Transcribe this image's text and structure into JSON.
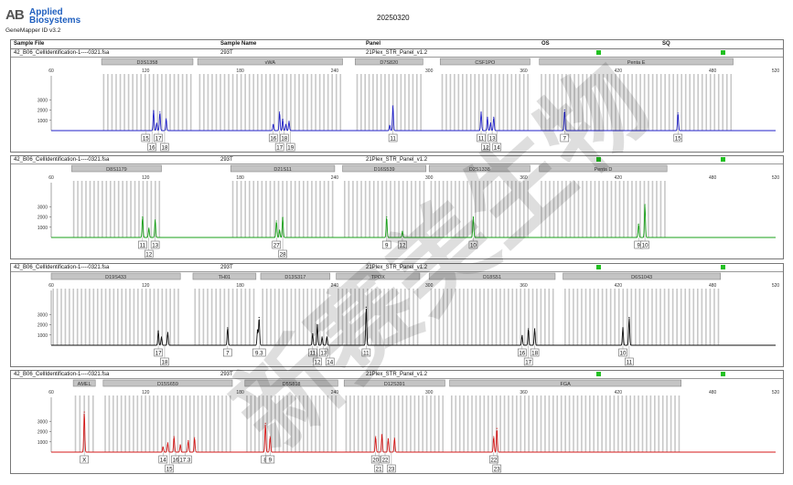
{
  "header": {
    "logo_mark": "AB",
    "brand_line1": "Applied",
    "brand_line2": "Biosystems",
    "software": "GeneMapper ID v3.2",
    "date": "20250320",
    "watermark": "新赛美生物"
  },
  "columns": {
    "sample_file": "Sample File",
    "sample_name": "Sample Name",
    "panel": "Panel",
    "os": "OS",
    "sq": "SQ"
  },
  "chart_data": [
    {
      "type": "line",
      "sample_file": "42_B06_CellIdentification-1----0321.fsa",
      "sample_name": "293T",
      "panel": "21Plex_STR_Panel_v1.2",
      "dye_color": "#2020c8",
      "xlim": [
        60,
        520
      ],
      "x_ticks": [
        60,
        120,
        180,
        240,
        300,
        360,
        420,
        480,
        520
      ],
      "ylim": [
        0,
        4000
      ],
      "y_ticks": [
        1000,
        2000,
        3000
      ],
      "markers": [
        {
          "name": "D3S1358",
          "start": 92,
          "end": 150
        },
        {
          "name": "vWA",
          "start": 153,
          "end": 245
        },
        {
          "name": "D7S820",
          "start": 253,
          "end": 296
        },
        {
          "name": "CSF1PO",
          "start": 307,
          "end": 364
        },
        {
          "name": "Penta E",
          "start": 370,
          "end": 493
        }
      ],
      "peaks": [
        {
          "x": 125,
          "y": 1950
        },
        {
          "x": 127,
          "y": 700
        },
        {
          "x": 129,
          "y": 1800
        },
        {
          "x": 133,
          "y": 1150
        },
        {
          "x": 201,
          "y": 600
        },
        {
          "x": 205,
          "y": 1800
        },
        {
          "x": 207,
          "y": 1100
        },
        {
          "x": 209,
          "y": 600
        },
        {
          "x": 211,
          "y": 900
        },
        {
          "x": 277,
          "y": 2400
        },
        {
          "x": 275,
          "y": 500
        },
        {
          "x": 333,
          "y": 1800
        },
        {
          "x": 337,
          "y": 1300
        },
        {
          "x": 339,
          "y": 750
        },
        {
          "x": 341,
          "y": 1300
        },
        {
          "x": 386,
          "y": 2000
        },
        {
          "x": 458,
          "y": 1700
        }
      ],
      "allele_labels": [
        {
          "text": "15",
          "x": 120,
          "row": 1
        },
        {
          "text": "16",
          "x": 124,
          "row": 2
        },
        {
          "text": "17",
          "x": 128,
          "row": 1
        },
        {
          "text": "18",
          "x": 132,
          "row": 2
        },
        {
          "text": "16",
          "x": 201,
          "row": 1
        },
        {
          "text": "17",
          "x": 205,
          "row": 2
        },
        {
          "text": "18",
          "x": 208,
          "row": 1
        },
        {
          "text": "19",
          "x": 212,
          "row": 2
        },
        {
          "text": "11",
          "x": 277,
          "row": 1
        },
        {
          "text": "11",
          "x": 333,
          "row": 1
        },
        {
          "text": "12",
          "x": 336,
          "row": 2
        },
        {
          "text": "13",
          "x": 340,
          "row": 1
        },
        {
          "text": "14",
          "x": 343,
          "row": 2
        },
        {
          "text": "7",
          "x": 386,
          "row": 1
        },
        {
          "text": "15",
          "x": 458,
          "row": 1
        }
      ]
    },
    {
      "type": "line",
      "sample_file": "42_B06_CellIdentification-1----0321.fsa",
      "sample_name": "293T",
      "panel": "21Plex_STR_Panel_v1.2",
      "dye_color": "#18a018",
      "xlim": [
        60,
        520
      ],
      "x_ticks": [
        60,
        120,
        180,
        240,
        300,
        360,
        420,
        480,
        520
      ],
      "ylim": [
        0,
        4000
      ],
      "y_ticks": [
        1000,
        2000,
        3000
      ],
      "markers": [
        {
          "name": "D8S1179",
          "start": 73,
          "end": 130
        },
        {
          "name": "D21S11",
          "start": 174,
          "end": 240
        },
        {
          "name": "D16S539",
          "start": 245,
          "end": 298
        },
        {
          "name": "D2S1338",
          "start": 300,
          "end": 364
        },
        {
          "name": "Penta D",
          "start": 370,
          "end": 451
        }
      ],
      "peaks": [
        {
          "x": 118,
          "y": 2000
        },
        {
          "x": 122,
          "y": 900
        },
        {
          "x": 126,
          "y": 1700
        },
        {
          "x": 203,
          "y": 1600
        },
        {
          "x": 205,
          "y": 700
        },
        {
          "x": 207,
          "y": 1950
        },
        {
          "x": 273,
          "y": 2000
        },
        {
          "x": 283,
          "y": 600
        },
        {
          "x": 328,
          "y": 2000
        },
        {
          "x": 433,
          "y": 1300
        },
        {
          "x": 437,
          "y": 3200
        }
      ],
      "allele_labels": [
        {
          "text": "11",
          "x": 118,
          "row": 1
        },
        {
          "text": "12",
          "x": 122,
          "row": 2
        },
        {
          "text": "13",
          "x": 126,
          "row": 1
        },
        {
          "text": "27",
          "x": 203,
          "row": 1
        },
        {
          "text": "28",
          "x": 207,
          "row": 2
        },
        {
          "text": "9",
          "x": 273,
          "row": 1
        },
        {
          "text": "12",
          "x": 283,
          "row": 1
        },
        {
          "text": "10",
          "x": 328,
          "row": 1
        },
        {
          "text": "9",
          "x": 433,
          "row": 1
        },
        {
          "text": "10",
          "x": 437,
          "row": 1
        }
      ]
    },
    {
      "type": "line",
      "sample_file": "42_B06_CellIdentification-1----0321.fsa",
      "sample_name": "293T",
      "panel": "21Plex_STR_Panel_v1.2",
      "dye_color": "#101010",
      "xlim": [
        60,
        520
      ],
      "x_ticks": [
        60,
        120,
        180,
        240,
        300,
        360,
        420,
        480,
        520
      ],
      "ylim": [
        0,
        4000
      ],
      "y_ticks": [
        1000,
        2000,
        3000
      ],
      "markers": [
        {
          "name": "D19S433",
          "start": 60,
          "end": 142
        },
        {
          "name": "TH01",
          "start": 150,
          "end": 190
        },
        {
          "name": "D13S317",
          "start": 193,
          "end": 237
        },
        {
          "name": "TPOX",
          "start": 241,
          "end": 294
        },
        {
          "name": "D18S51",
          "start": 300,
          "end": 380
        },
        {
          "name": "D6S1043",
          "start": 385,
          "end": 485
        }
      ],
      "peaks": [
        {
          "x": 128,
          "y": 1400
        },
        {
          "x": 130,
          "y": 800
        },
        {
          "x": 134,
          "y": 1250
        },
        {
          "x": 172,
          "y": 1700
        },
        {
          "x": 192,
          "y": 2700
        },
        {
          "x": 191,
          "y": 1500
        },
        {
          "x": 226,
          "y": 1100
        },
        {
          "x": 229,
          "y": 2000
        },
        {
          "x": 232,
          "y": 800
        },
        {
          "x": 235,
          "y": 800
        },
        {
          "x": 260,
          "y": 3700
        },
        {
          "x": 359,
          "y": 950
        },
        {
          "x": 363,
          "y": 1600
        },
        {
          "x": 367,
          "y": 1600
        },
        {
          "x": 423,
          "y": 1700
        },
        {
          "x": 427,
          "y": 2700
        }
      ],
      "allele_labels": [
        {
          "text": "17",
          "x": 128,
          "row": 1
        },
        {
          "text": "18",
          "x": 132,
          "row": 2
        },
        {
          "text": "7",
          "x": 172,
          "row": 1
        },
        {
          "text": "9.3",
          "x": 192,
          "row": 1
        },
        {
          "text": "11",
          "x": 226,
          "row": 1
        },
        {
          "text": "12",
          "x": 229,
          "row": 2
        },
        {
          "text": "13",
          "x": 233,
          "row": 1
        },
        {
          "text": "14",
          "x": 237,
          "row": 2
        },
        {
          "text": "11",
          "x": 260,
          "row": 1
        },
        {
          "text": "16",
          "x": 359,
          "row": 1
        },
        {
          "text": "17",
          "x": 363,
          "row": 2
        },
        {
          "text": "18",
          "x": 367,
          "row": 1
        },
        {
          "text": "10",
          "x": 423,
          "row": 1
        },
        {
          "text": "11",
          "x": 427,
          "row": 2
        }
      ]
    },
    {
      "type": "line",
      "sample_file": "42_B06_CellIdentification-1----0321.fsa",
      "sample_name": "293T",
      "panel": "21Plex_STR_Panel_v1.2",
      "dye_color": "#d41818",
      "xlim": [
        60,
        520
      ],
      "x_ticks": [
        60,
        120,
        180,
        240,
        300,
        360,
        420,
        480,
        520
      ],
      "ylim": [
        0,
        4000
      ],
      "y_ticks": [
        1000,
        2000,
        3000
      ],
      "markers": [
        {
          "name": "AMEL",
          "start": 74,
          "end": 88
        },
        {
          "name": "D15S659",
          "start": 93,
          "end": 175
        },
        {
          "name": "D5S818",
          "start": 183,
          "end": 242
        },
        {
          "name": "D12S391",
          "start": 246,
          "end": 310
        },
        {
          "name": "FGA",
          "start": 313,
          "end": 460
        }
      ],
      "peaks": [
        {
          "x": 81,
          "y": 3900
        },
        {
          "x": 131,
          "y": 500
        },
        {
          "x": 134,
          "y": 900
        },
        {
          "x": 138,
          "y": 1500
        },
        {
          "x": 142,
          "y": 700
        },
        {
          "x": 147,
          "y": 1100
        },
        {
          "x": 151,
          "y": 1400
        },
        {
          "x": 196,
          "y": 2800
        },
        {
          "x": 199,
          "y": 1500
        },
        {
          "x": 266,
          "y": 1500
        },
        {
          "x": 270,
          "y": 1700
        },
        {
          "x": 274,
          "y": 1300
        },
        {
          "x": 278,
          "y": 1350
        },
        {
          "x": 341,
          "y": 1500
        },
        {
          "x": 343,
          "y": 2300
        }
      ],
      "allele_labels": [
        {
          "text": "X",
          "x": 81,
          "row": 1
        },
        {
          "text": "14",
          "x": 131,
          "row": 1
        },
        {
          "text": "15",
          "x": 135,
          "row": 2
        },
        {
          "text": "16",
          "x": 139,
          "row": 1
        },
        {
          "text": "17.3",
          "x": 145,
          "row": 1
        },
        {
          "text": "8",
          "x": 196,
          "row": 1
        },
        {
          "text": "9",
          "x": 199,
          "row": 1
        },
        {
          "text": "20",
          "x": 266,
          "row": 1
        },
        {
          "text": "21",
          "x": 268,
          "row": 2
        },
        {
          "text": "22",
          "x": 272,
          "row": 1
        },
        {
          "text": "23",
          "x": 276,
          "row": 2
        },
        {
          "text": "22",
          "x": 341,
          "row": 1
        },
        {
          "text": "23",
          "x": 343,
          "row": 2
        }
      ]
    }
  ]
}
